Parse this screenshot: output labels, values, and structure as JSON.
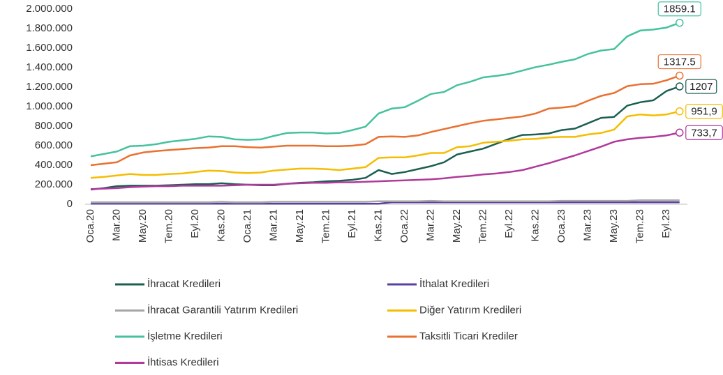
{
  "chart_data": {
    "type": "line",
    "categories": [
      "Oca.20",
      null,
      "Mar.20",
      null,
      "May.20",
      null,
      "Tem.20",
      null,
      "Eyl.20",
      null,
      "Kas.20",
      null,
      "Oca.21",
      null,
      "Mar.21",
      null,
      "May.21",
      null,
      "Tem.21",
      null,
      "Eyl.21",
      null,
      "Kas.21",
      null,
      "Oca.22",
      null,
      "Mar.22",
      null,
      "May.22",
      null,
      "Tem.22",
      null,
      "Eyl.22",
      null,
      "Kas.22",
      null,
      "Oca.23",
      null,
      "Mar.23",
      null,
      "May.23",
      null,
      "Tem.23",
      null,
      "Eyl.23",
      null
    ],
    "ylim": [
      0,
      2000000
    ],
    "yticks": [
      0,
      {
        "value": 200000,
        "label": "200.000"
      },
      {
        "value": 400000,
        "label": "400.000"
      },
      {
        "value": 600000,
        "label": "600.000"
      },
      {
        "value": 800000,
        "label": "800.000"
      },
      {
        "value": 1000000,
        "label": "1.000.000"
      },
      {
        "value": 1200000,
        "label": "1.200.000"
      },
      {
        "value": 1400000,
        "label": "1.400.000"
      },
      {
        "value": 1600000,
        "label": "1.600.000"
      },
      {
        "value": 1800000,
        "label": "1.800.000"
      },
      {
        "value": 2000000,
        "label": "2.000.000"
      }
    ],
    "grid": false,
    "series": [
      {
        "name": "İhracat Kredileri",
        "color": "#1b5e52",
        "values": [
          150000,
          165000,
          185000,
          190000,
          190000,
          190000,
          195000,
          200000,
          205000,
          205000,
          215000,
          205000,
          200000,
          195000,
          195000,
          210000,
          220000,
          225000,
          235000,
          240000,
          250000,
          270000,
          350000,
          310000,
          330000,
          360000,
          390000,
          430000,
          510000,
          540000,
          570000,
          620000,
          670000,
          710000,
          715000,
          725000,
          760000,
          775000,
          830000,
          885000,
          895000,
          1010000,
          1045000,
          1065000,
          1160000,
          1207000
        ],
        "value_labels": [
          null,
          null,
          null,
          null,
          null,
          null,
          null,
          null,
          null,
          null,
          null,
          null,
          null,
          null,
          null,
          null,
          null,
          null,
          null,
          null,
          null,
          null,
          null,
          null,
          null,
          null,
          null,
          null,
          null,
          null,
          null,
          null,
          null,
          null,
          null,
          null,
          null,
          null,
          null,
          null,
          null,
          null,
          null,
          null,
          null,
          "1207"
        ]
      },
      {
        "name": "İthalat Kredileri",
        "color": "#5b3fa3",
        "values": [
          5000,
          5000,
          5000,
          5000,
          5000,
          5000,
          5000,
          5000,
          5000,
          5000,
          5000,
          5000,
          5000,
          5000,
          5000,
          5000,
          5000,
          5000,
          5000,
          5000,
          5000,
          5000,
          5000,
          20000,
          20000,
          20000,
          20000,
          20000,
          20000,
          20000,
          20000,
          20000,
          20000,
          20000,
          20000,
          20000,
          20000,
          20000,
          20000,
          20000,
          20000,
          20000,
          20000,
          20000,
          20000,
          20000
        ]
      },
      {
        "name": "İhracat Garantili Yatırım Kredileri",
        "color": "#a6a6a6",
        "values": [
          20000,
          20000,
          20000,
          20000,
          20000,
          20000,
          20000,
          20000,
          20000,
          20000,
          25000,
          20000,
          20000,
          20000,
          25000,
          25000,
          25000,
          25000,
          25000,
          25000,
          25000,
          25000,
          30000,
          30000,
          30000,
          30000,
          35000,
          30000,
          30000,
          30000,
          30000,
          30000,
          30000,
          30000,
          30000,
          30000,
          35000,
          35000,
          35000,
          35000,
          35000,
          35000,
          40000,
          40000,
          40000,
          40000
        ]
      },
      {
        "name": "Diğer Yatırım Kredileri",
        "color": "#f5bd00",
        "values": [
          270000,
          280000,
          295000,
          310000,
          300000,
          300000,
          310000,
          315000,
          330000,
          345000,
          340000,
          325000,
          320000,
          325000,
          345000,
          355000,
          365000,
          365000,
          360000,
          350000,
          365000,
          380000,
          475000,
          480000,
          480000,
          500000,
          525000,
          525000,
          585000,
          595000,
          630000,
          640000,
          650000,
          665000,
          670000,
          685000,
          690000,
          690000,
          715000,
          730000,
          765000,
          900000,
          920000,
          910000,
          920000,
          951900
        ],
        "value_labels": [
          null,
          null,
          null,
          null,
          null,
          null,
          null,
          null,
          null,
          null,
          null,
          null,
          null,
          null,
          null,
          null,
          null,
          null,
          null,
          null,
          null,
          null,
          null,
          null,
          null,
          null,
          null,
          null,
          null,
          null,
          null,
          null,
          null,
          null,
          null,
          null,
          null,
          null,
          null,
          null,
          null,
          null,
          null,
          null,
          null,
          "951,9"
        ]
      },
      {
        "name": "İşletme Kredileri",
        "color": "#45c29d",
        "values": [
          490000,
          515000,
          540000,
          595000,
          600000,
          615000,
          640000,
          655000,
          670000,
          695000,
          690000,
          665000,
          660000,
          665000,
          700000,
          730000,
          735000,
          735000,
          725000,
          730000,
          760000,
          795000,
          930000,
          980000,
          995000,
          1060000,
          1130000,
          1150000,
          1220000,
          1255000,
          1300000,
          1315000,
          1335000,
          1370000,
          1405000,
          1430000,
          1460000,
          1485000,
          1540000,
          1575000,
          1590000,
          1720000,
          1780000,
          1790000,
          1810000,
          1859100
        ],
        "value_labels": [
          null,
          null,
          null,
          null,
          null,
          null,
          null,
          null,
          null,
          null,
          null,
          null,
          null,
          null,
          null,
          null,
          null,
          null,
          null,
          null,
          null,
          null,
          null,
          null,
          null,
          null,
          null,
          null,
          null,
          null,
          null,
          null,
          null,
          null,
          null,
          null,
          null,
          null,
          null,
          null,
          null,
          null,
          null,
          null,
          null,
          "1859.1"
        ]
      },
      {
        "name": "Taksitli Ticari Krediler",
        "color": "#ea7030",
        "values": [
          400000,
          415000,
          430000,
          500000,
          530000,
          545000,
          555000,
          565000,
          575000,
          580000,
          595000,
          595000,
          585000,
          580000,
          590000,
          600000,
          600000,
          600000,
          595000,
          595000,
          600000,
          615000,
          690000,
          695000,
          690000,
          705000,
          740000,
          770000,
          800000,
          830000,
          855000,
          870000,
          885000,
          900000,
          930000,
          980000,
          990000,
          1005000,
          1060000,
          1110000,
          1140000,
          1210000,
          1230000,
          1235000,
          1270000,
          1317500
        ],
        "value_labels": [
          null,
          null,
          null,
          null,
          null,
          null,
          null,
          null,
          null,
          null,
          null,
          null,
          null,
          null,
          null,
          null,
          null,
          null,
          null,
          null,
          null,
          null,
          null,
          null,
          null,
          null,
          null,
          null,
          null,
          null,
          null,
          null,
          null,
          null,
          null,
          null,
          null,
          null,
          null,
          null,
          null,
          null,
          null,
          null,
          null,
          "1317.5"
        ]
      },
      {
        "name": "İhtisas Kredileri",
        "color": "#b0399b",
        "values": [
          155000,
          160000,
          165000,
          175000,
          180000,
          185000,
          185000,
          190000,
          190000,
          190000,
          190000,
          195000,
          200000,
          200000,
          200000,
          210000,
          215000,
          220000,
          220000,
          225000,
          225000,
          230000,
          235000,
          240000,
          245000,
          250000,
          255000,
          265000,
          280000,
          290000,
          305000,
          315000,
          330000,
          350000,
          385000,
          420000,
          460000,
          500000,
          545000,
          590000,
          640000,
          665000,
          680000,
          690000,
          705000,
          733700
        ],
        "value_labels": [
          null,
          null,
          null,
          null,
          null,
          null,
          null,
          null,
          null,
          null,
          null,
          null,
          null,
          null,
          null,
          null,
          null,
          null,
          null,
          null,
          null,
          null,
          null,
          null,
          null,
          null,
          null,
          null,
          null,
          null,
          null,
          null,
          null,
          null,
          null,
          null,
          null,
          null,
          null,
          null,
          null,
          null,
          null,
          null,
          null,
          "733,7"
        ]
      }
    ]
  }
}
